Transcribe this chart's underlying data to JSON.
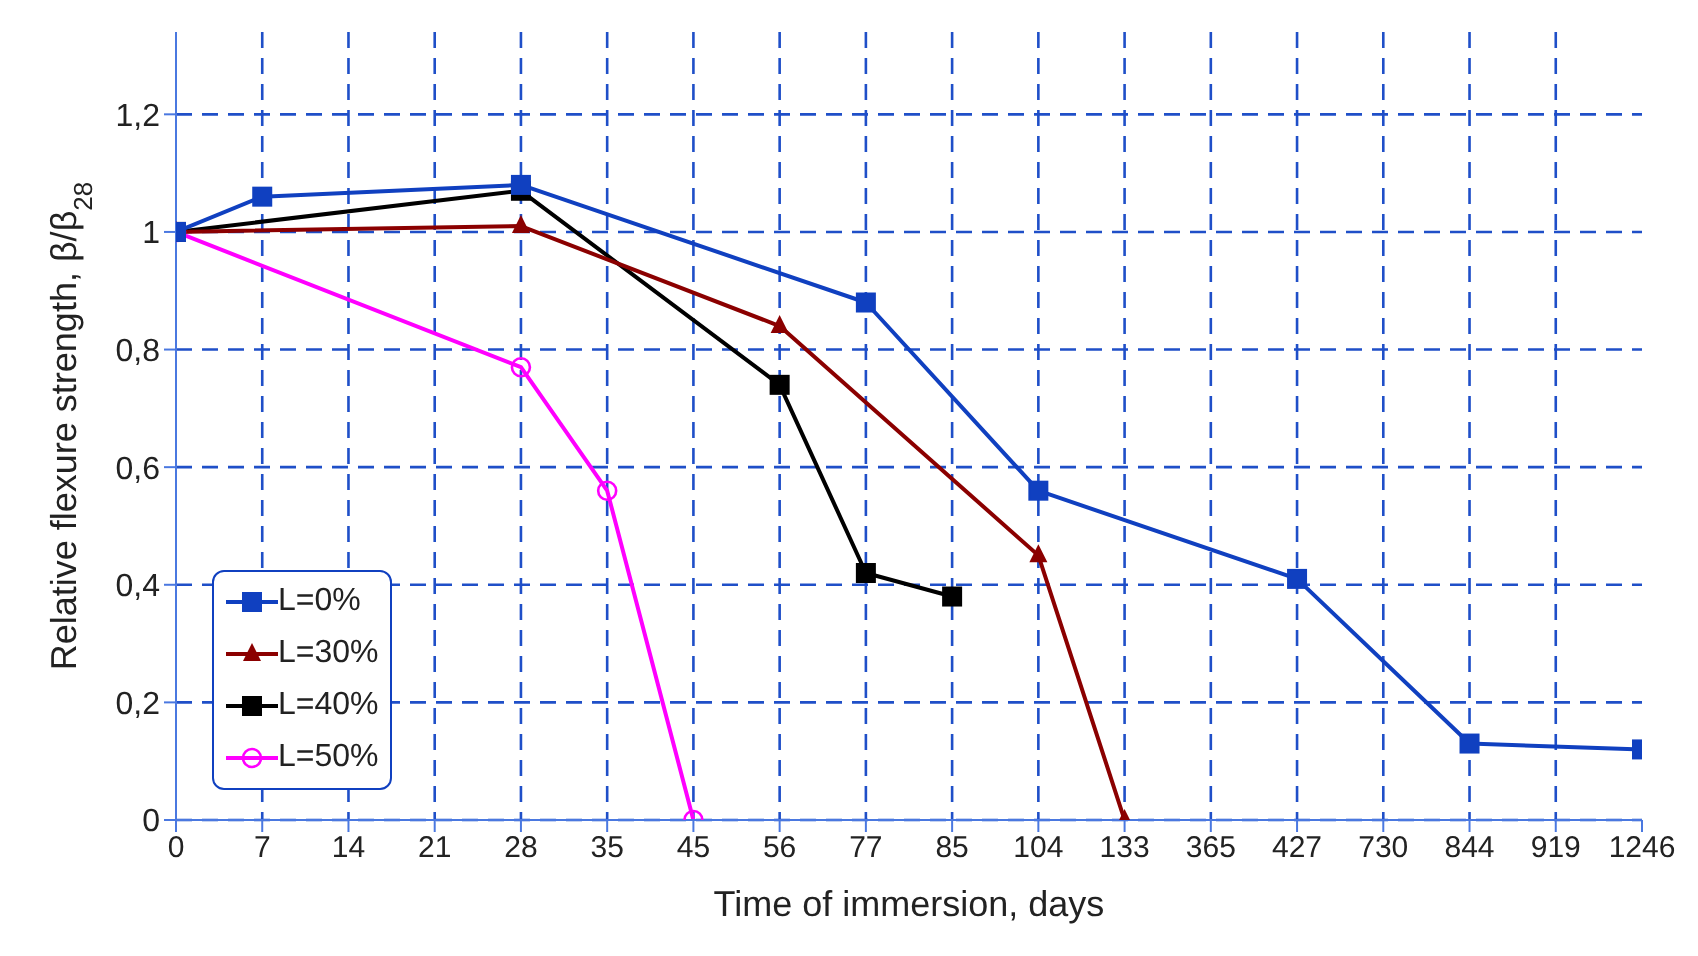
{
  "chart_data": {
    "type": "line",
    "xlabel": "Time of immersion, days",
    "ylabel": "Relative flexure strength, β/β$_{28}$",
    "categories": [
      "0",
      "7",
      "14",
      "21",
      "28",
      "35",
      "45",
      "56",
      "77",
      "85",
      "104",
      "133",
      "365",
      "427",
      "730",
      "844",
      "919",
      "1246"
    ],
    "series": [
      {
        "name": "L=0%",
        "color": "#1040c0",
        "marker": "square",
        "values": [
          1,
          1.06,
          null,
          null,
          1.08,
          null,
          null,
          null,
          0.88,
          null,
          0.56,
          null,
          null,
          0.41,
          null,
          0.13,
          null,
          0.12
        ]
      },
      {
        "name": "L=30%",
        "color": "#8b0000",
        "marker": "triangle",
        "values": [
          1,
          null,
          null,
          null,
          1.01,
          null,
          null,
          0.84,
          null,
          null,
          0.45,
          0,
          null,
          null,
          null,
          null,
          null,
          null
        ]
      },
      {
        "name": "L=40%",
        "color": "#000000",
        "marker": "square",
        "values": [
          1,
          null,
          null,
          null,
          1.07,
          null,
          null,
          0.74,
          0.42,
          0.38,
          null,
          null,
          null,
          null,
          null,
          null,
          null,
          null
        ]
      },
      {
        "name": "L=50%",
        "color": "#ff00ff",
        "marker": "circle",
        "values": [
          1,
          null,
          null,
          null,
          0.77,
          0.56,
          0,
          null,
          null,
          null,
          null,
          null,
          null,
          null,
          null,
          null,
          null,
          null
        ]
      }
    ],
    "ylim": [
      0,
      1.34
    ],
    "yticks": [
      0,
      {
        "value": 0.2,
        "label": "0,2"
      },
      {
        "value": 0.4,
        "label": "0,4"
      },
      {
        "value": 0.6,
        "label": "0,6"
      },
      {
        "value": 0.8,
        "label": "0,8"
      },
      1,
      {
        "value": 1.2,
        "label": "1,2"
      }
    ],
    "grid": true,
    "legend": "bottom left",
    "line_style": "solid"
  }
}
